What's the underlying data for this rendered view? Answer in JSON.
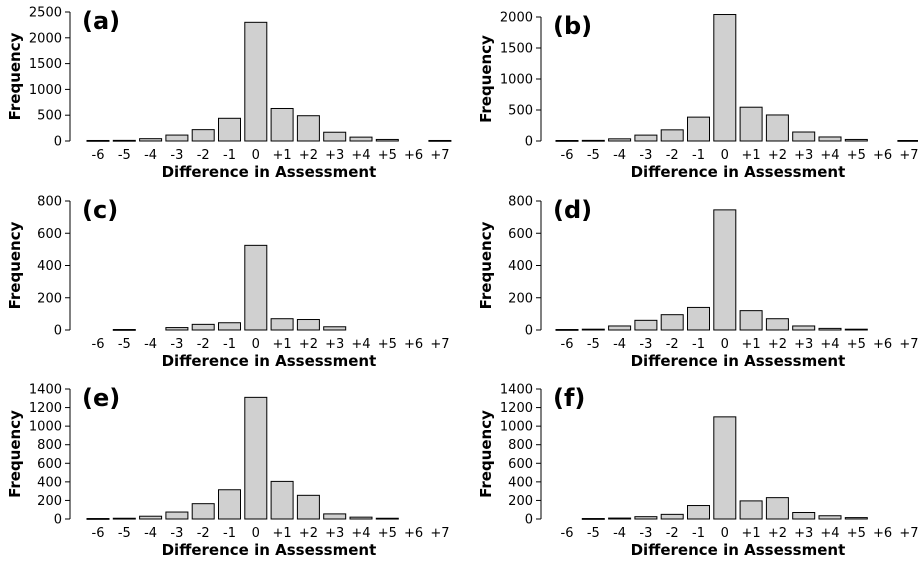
{
  "chart_data": [
    {
      "type": "bar",
      "panel_label": "(a)",
      "categories": [
        "-6",
        "-5",
        "-4",
        "-3",
        "-2",
        "-1",
        "0",
        "+1",
        "+2",
        "+3",
        "+4",
        "+5",
        "+6",
        "+7"
      ],
      "values": [
        10,
        12,
        45,
        115,
        220,
        440,
        2300,
        630,
        490,
        170,
        75,
        30,
        0,
        10
      ],
      "ylabel": "Frequency",
      "xlabel": "Difference in Assessment",
      "ylim": [
        0,
        2500
      ],
      "yticks": [
        0,
        500,
        1000,
        1500,
        2000,
        2500
      ]
    },
    {
      "type": "bar",
      "panel_label": "(b)",
      "categories": [
        "-6",
        "-5",
        "-4",
        "-3",
        "-2",
        "-1",
        "0",
        "+1",
        "+2",
        "+3",
        "+4",
        "+5",
        "+6",
        "+7"
      ],
      "values": [
        8,
        10,
        35,
        95,
        180,
        385,
        2040,
        545,
        420,
        145,
        65,
        25,
        0,
        8
      ],
      "ylabel": "Frequency",
      "xlabel": "Difference in Assessment",
      "ylim": [
        0,
        2000
      ],
      "yticks": [
        0,
        500,
        1000,
        1500,
        2000
      ]
    },
    {
      "type": "bar",
      "panel_label": "(c)",
      "categories": [
        "-6",
        "-5",
        "-4",
        "-3",
        "-2",
        "-1",
        "0",
        "+1",
        "+2",
        "+3",
        "+4",
        "+5",
        "+6",
        "+7"
      ],
      "values": [
        0,
        3,
        0,
        15,
        35,
        45,
        525,
        70,
        65,
        20,
        0,
        0,
        0,
        0
      ],
      "ylabel": "Frequency",
      "xlabel": "Difference in Assessment",
      "ylim": [
        0,
        800
      ],
      "yticks": [
        0,
        200,
        400,
        600,
        800
      ]
    },
    {
      "type": "bar",
      "panel_label": "(d)",
      "categories": [
        "-6",
        "-5",
        "-4",
        "-3",
        "-2",
        "-1",
        "0",
        "+1",
        "+2",
        "+3",
        "+4",
        "+5",
        "+6",
        "+7"
      ],
      "values": [
        3,
        5,
        25,
        60,
        95,
        140,
        745,
        120,
        70,
        25,
        10,
        5,
        0,
        0
      ],
      "ylabel": "Frequency",
      "xlabel": "Difference in Assessment",
      "ylim": [
        0,
        800
      ],
      "yticks": [
        0,
        200,
        400,
        600,
        800
      ]
    },
    {
      "type": "bar",
      "panel_label": "(e)",
      "categories": [
        "-6",
        "-5",
        "-4",
        "-3",
        "-2",
        "-1",
        "0",
        "+1",
        "+2",
        "+3",
        "+4",
        "+5",
        "+6",
        "+7"
      ],
      "values": [
        5,
        8,
        30,
        75,
        165,
        315,
        1310,
        405,
        255,
        55,
        20,
        8,
        0,
        0
      ],
      "ylabel": "Frequency",
      "xlabel": "Difference in Assessment",
      "ylim": [
        0,
        1400
      ],
      "yticks": [
        0,
        200,
        400,
        600,
        800,
        1000,
        1200,
        1400
      ]
    },
    {
      "type": "bar",
      "panel_label": "(f)",
      "categories": [
        "-6",
        "-5",
        "-4",
        "-3",
        "-2",
        "-1",
        "0",
        "+1",
        "+2",
        "+3",
        "+4",
        "+5",
        "+6",
        "+7"
      ],
      "values": [
        0,
        5,
        10,
        25,
        50,
        145,
        1100,
        195,
        230,
        70,
        35,
        15,
        0,
        0
      ],
      "ylabel": "Frequency",
      "xlabel": "Difference in Assessment",
      "ylim": [
        0,
        1400
      ],
      "yticks": [
        0,
        200,
        400,
        600,
        800,
        1000,
        1200,
        1400
      ]
    }
  ],
  "colors": {
    "bar_fill": "#d0d0d0",
    "bar_stroke": "#000000"
  }
}
